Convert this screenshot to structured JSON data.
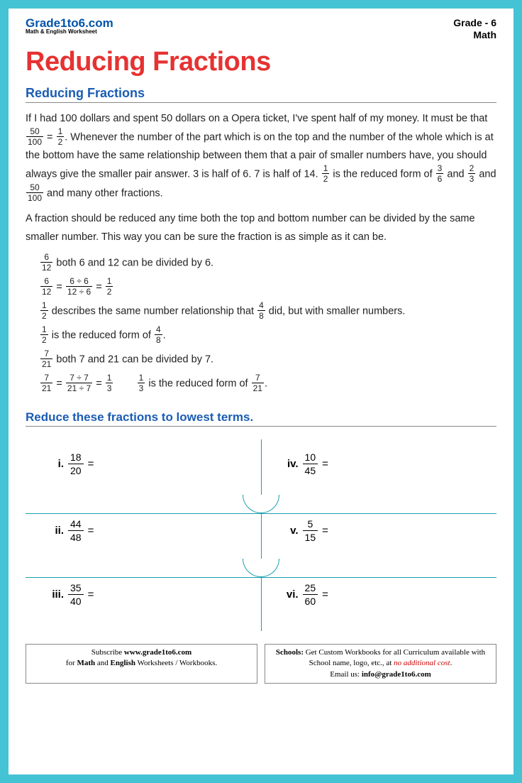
{
  "brand": {
    "name": "Grade1to6.com",
    "sub": "Math & English Worksheet"
  },
  "grade": {
    "line1": "Grade - 6",
    "line2": "Math"
  },
  "title": "Reducing Fractions",
  "section_title": "Reducing Fractions",
  "para1a": "If I had 100 dollars and spent 50 dollars on a Opera ticket, I've spent half of my money. It must be that ",
  "f_50_100": {
    "n": "50",
    "d": "100"
  },
  "para1b": " = ",
  "f_1_2": {
    "n": "1",
    "d": "2"
  },
  "para1c": ". Whenever the number of the part which is on the top and the number of the whole which is at the bottom have the same relationship between them that a pair of smaller numbers have, you should always give the smaller pair answer. 3 is half of 6. 7 is half of 14. ",
  "para1d": " is the reduced form of ",
  "f_3_6": {
    "n": "3",
    "d": "6"
  },
  "para1e": " and ",
  "f_2_3": {
    "n": "2",
    "d": "3"
  },
  "para1f": " and ",
  "para1g": " and many other fractions.",
  "para2": "A fraction should be reduced any time both the top and bottom number can be divided by the same smaller number. This way you can be sure the fraction is as simple as it can be.",
  "w1t": " both 6 and 12 can be divided by 6.",
  "f_6_12": {
    "n": "6",
    "d": "12"
  },
  "f_6d6_12d6": {
    "n": "6 ÷ 6",
    "d": "12 ÷ 6"
  },
  "w3a": " describes the same number relationship that ",
  "f_4_8": {
    "n": "4",
    "d": "8"
  },
  "w3b": " did, but with smaller numbers.",
  "w4a": " is the reduced form of ",
  "w5t": " both 7 and 21 can be divided by 7.",
  "f_7_21": {
    "n": "7",
    "d": "21"
  },
  "f_7d7_21d7": {
    "n": "7 ÷ 7",
    "d": "21 ÷ 7"
  },
  "f_1_3": {
    "n": "1",
    "d": "3"
  },
  "w6a": " is the reduced form of ",
  "exercise_title": "Reduce these fractions to lowest terms.",
  "problems": [
    {
      "lbl": "i.",
      "n": "18",
      "d": "20"
    },
    {
      "lbl": "ii.",
      "n": "44",
      "d": "48"
    },
    {
      "lbl": "iii.",
      "n": "35",
      "d": "40"
    },
    {
      "lbl": "iv.",
      "n": "10",
      "d": "45"
    },
    {
      "lbl": "v.",
      "n": "5",
      "d": "15"
    },
    {
      "lbl": "vi.",
      "n": "25",
      "d": "60"
    }
  ],
  "footer": {
    "left1": "Subscribe ",
    "left_site": "www.grade1to6.com",
    "left2": "for ",
    "left_m": "Math",
    "left_and": " and ",
    "left_e": "English",
    "left3": " Worksheets / Workbooks.",
    "right1": "Schools:",
    "right2": " Get Custom Workbooks for all Curriculum available with School name, logo, etc., at ",
    "right_red": "no additional cost",
    "right3": ".",
    "right4": "Email us: ",
    "right_email": "info@grade1to6.com"
  },
  "colors": {
    "page_bg": "#44c3d4",
    "title_red": "#e63232",
    "heading_blue": "#1a5cb3",
    "divider_teal": "#1a9fae"
  }
}
